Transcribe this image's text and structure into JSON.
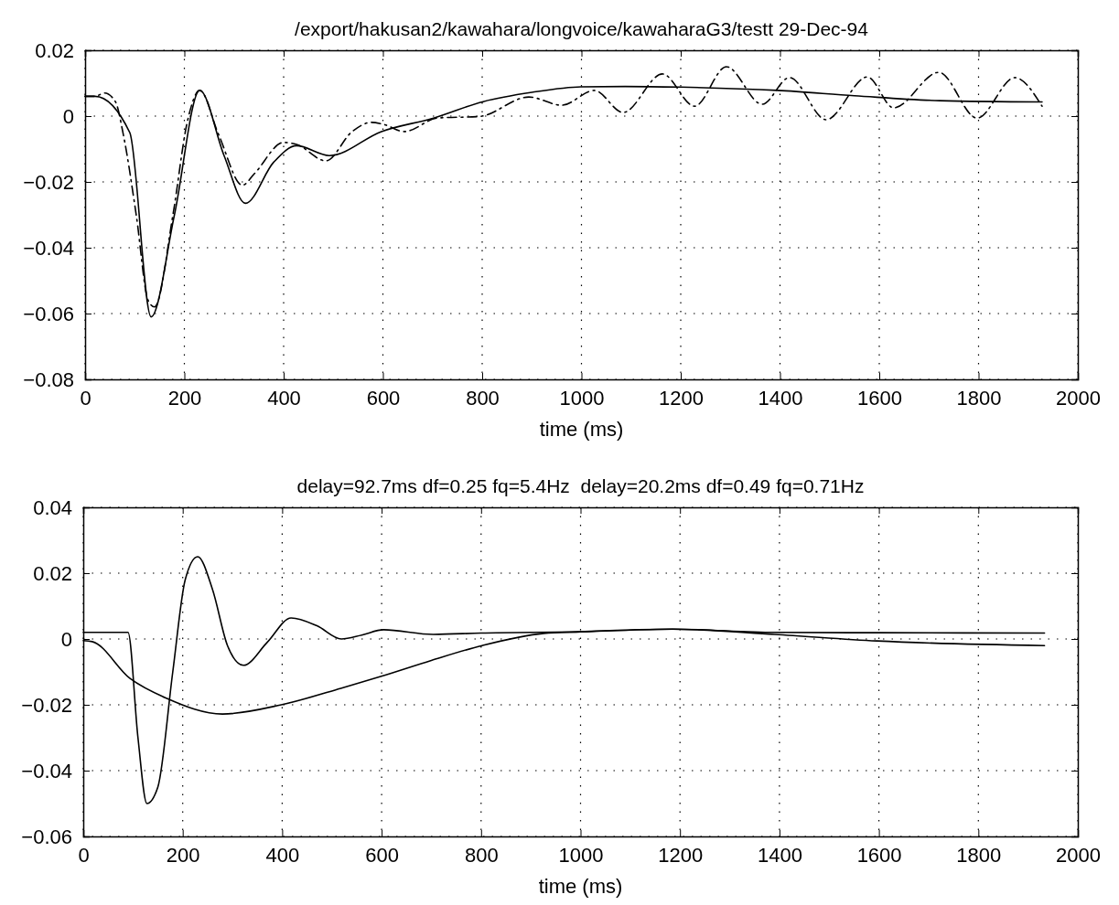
{
  "chart_data": [
    {
      "type": "line",
      "title": "/export/hakusan2/kawahara/longvoice/kawaharaG3/testt 29-Dec-94",
      "xlabel": "time (ms)",
      "xlim": [
        0,
        2000
      ],
      "xticks": [
        0,
        200,
        400,
        600,
        800,
        1000,
        1200,
        1400,
        1600,
        1800,
        2000
      ],
      "ylim": [
        -0.08,
        0.02
      ],
      "yticks": [
        -0.08,
        -0.06,
        -0.04,
        -0.02,
        0,
        0.02
      ],
      "grid": true,
      "series": [
        {
          "color": "#000000",
          "line_style": "solid",
          "x": [
            0,
            20,
            90,
            133,
            180,
            231,
            280,
            323,
            380,
            426,
            492,
            597,
            702,
            802,
            900,
            999,
            1088,
            1200,
            1395,
            1550,
            1722,
            1928
          ],
          "values": [
            0.006,
            0.006,
            -0.005,
            -0.061,
            -0.03,
            0.0078,
            -0.012,
            -0.0265,
            -0.014,
            -0.009,
            -0.012,
            -0.0047,
            -0.0006,
            0.0044,
            0.0072,
            0.0089,
            0.009,
            0.0088,
            0.0078,
            0.0062,
            0.0047,
            0.0043
          ]
        },
        {
          "color": "#000000",
          "line_style": "dashed",
          "x": [
            0,
            20,
            39,
            61,
            77,
            103,
            127,
            140,
            177,
            206,
            231,
            269,
            317,
            341,
            400,
            426,
            485,
            538,
            577,
            601,
            643,
            710,
            795,
            894,
            960,
            1026,
            1084,
            1163,
            1228,
            1292,
            1364,
            1419,
            1493,
            1576,
            1629,
            1720,
            1797,
            1873,
            1928
          ],
          "values": [
            0.006,
            0.006,
            0.007,
            0.0044,
            -0.0056,
            -0.03,
            -0.056,
            -0.058,
            -0.03,
            -0.0017,
            0.0078,
            -0.0056,
            -0.021,
            -0.0175,
            -0.008,
            -0.0086,
            -0.0136,
            -0.0047,
            -0.0019,
            -0.0025,
            -0.0047,
            -0.0006,
            -0.0001,
            0.0058,
            0.0033,
            0.0078,
            0.0011,
            0.0128,
            0.003,
            0.015,
            0.0036,
            0.0117,
            -0.0011,
            0.0119,
            0.0025,
            0.0133,
            -0.0006,
            0.0117,
            0.003
          ]
        }
      ]
    },
    {
      "type": "line",
      "title": "delay=92.7ms df=0.25 fq=5.4Hz  delay=20.2ms df=0.49 fq=0.71Hz",
      "xlabel": "time (ms)",
      "xlim": [
        0,
        2000
      ],
      "xticks": [
        0,
        200,
        400,
        600,
        800,
        1000,
        1200,
        1400,
        1600,
        1800,
        2000
      ],
      "ylim": [
        -0.06,
        0.04
      ],
      "yticks": [
        -0.06,
        -0.04,
        -0.02,
        0,
        0.02,
        0.04
      ],
      "grid": true,
      "series": [
        {
          "color": "#000000",
          "line_style": "solid",
          "x": [
            0,
            90,
            110,
            128,
            150,
            180,
            205,
            230,
            260,
            290,
            322,
            370,
            418,
            470,
            519,
            560,
            604,
            704,
            800,
            1000,
            1185,
            1390,
            1600,
            1933
          ],
          "values": [
            0.002,
            0.002,
            -0.03,
            -0.05,
            -0.045,
            -0.01,
            0.018,
            0.025,
            0.015,
            -0.002,
            -0.008,
            -0.001,
            0.0064,
            0.004,
            0.0,
            0.0012,
            0.0028,
            0.0014,
            0.0018,
            0.0022,
            0.003,
            0.002,
            0.0019,
            0.0018
          ]
        },
        {
          "color": "#000000",
          "line_style": "solid",
          "x": [
            0,
            18,
            94,
            167,
            280,
            398,
            518,
            598,
            700,
            802,
            926,
            1000,
            1185,
            1390,
            1596,
            1933
          ],
          "values": [
            -0.0005,
            -0.0008,
            -0.012,
            -0.018,
            -0.0228,
            -0.02,
            -0.015,
            -0.0114,
            -0.0065,
            -0.002,
            0.0017,
            0.0022,
            0.003,
            0.0014,
            -0.0006,
            -0.002
          ]
        }
      ]
    }
  ]
}
